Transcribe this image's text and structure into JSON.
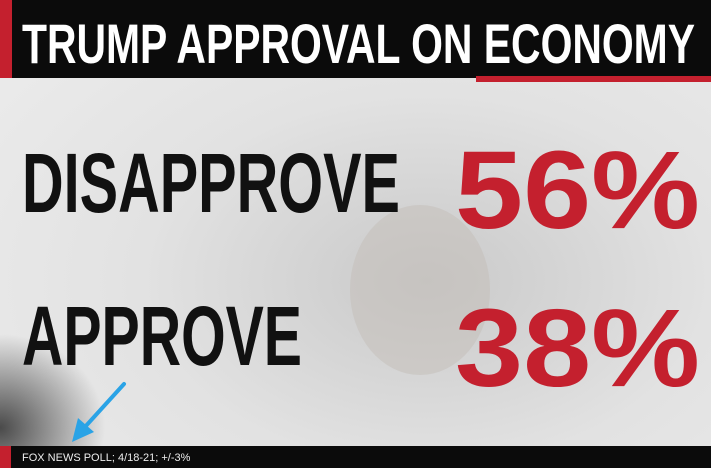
{
  "header": {
    "title": "TRUMP APPROVAL ON ECONOMY"
  },
  "results": [
    {
      "label": "DISAPPROVE",
      "value": "56%"
    },
    {
      "label": "APPROVE",
      "value": "38%"
    }
  ],
  "footer": {
    "source": "FOX NEWS POLL; 4/18-21; +/-3%"
  }
}
